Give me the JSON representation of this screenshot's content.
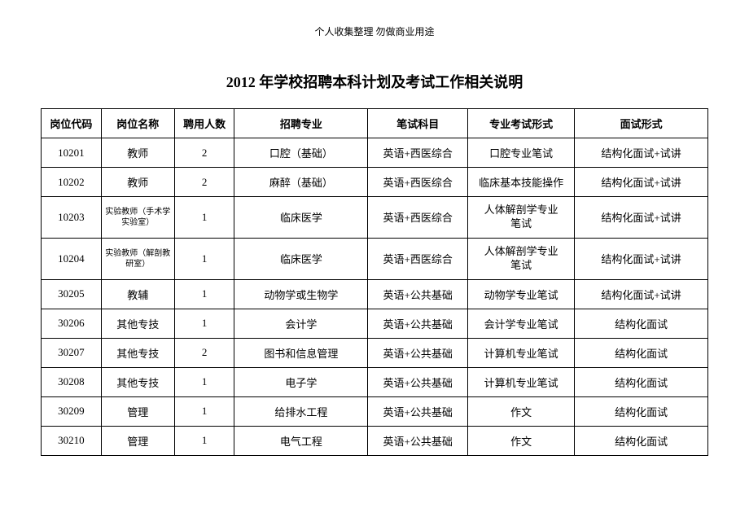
{
  "header_note": "个人收集整理  勿做商业用途",
  "title": "2012 年学校招聘本科计划及考试工作相关说明",
  "table": {
    "columns": [
      "岗位代码",
      "岗位名称",
      "聘用人数",
      "招聘专业",
      "笔试科目",
      "专业考试形式",
      "面试形式"
    ],
    "rows": [
      {
        "code": "10201",
        "name": "教师",
        "name_small": false,
        "count": "2",
        "major": "口腔（基础）",
        "written": "英语+西医综合",
        "pro": "口腔专业笔试",
        "pro_two": false,
        "interview": "结构化面试+试讲"
      },
      {
        "code": "10202",
        "name": "教师",
        "name_small": false,
        "count": "2",
        "major": "麻醉（基础）",
        "written": "英语+西医综合",
        "pro": "临床基本技能操作",
        "pro_two": false,
        "interview": "结构化面试+试讲"
      },
      {
        "code": "10203",
        "name": "实验教师（手术学实验室）",
        "name_small": true,
        "count": "1",
        "major": "临床医学",
        "written": "英语+西医综合",
        "pro": "人体解剖学专业笔试",
        "pro_two": true,
        "interview": "结构化面试+试讲"
      },
      {
        "code": "10204",
        "name": "实验教师（解剖教研室）",
        "name_small": true,
        "count": "1",
        "major": "临床医学",
        "written": "英语+西医综合",
        "pro": "人体解剖学专业笔试",
        "pro_two": true,
        "interview": "结构化面试+试讲"
      },
      {
        "code": "30205",
        "name": "教辅",
        "name_small": false,
        "count": "1",
        "major": "动物学或生物学",
        "written": "英语+公共基础",
        "pro": "动物学专业笔试",
        "pro_two": false,
        "interview": "结构化面试+试讲"
      },
      {
        "code": "30206",
        "name": "其他专技",
        "name_small": false,
        "count": "1",
        "major": "会计学",
        "written": "英语+公共基础",
        "pro": "会计学专业笔试",
        "pro_two": false,
        "interview": "结构化面试"
      },
      {
        "code": "30207",
        "name": "其他专技",
        "name_small": false,
        "count": "2",
        "major": "图书和信息管理",
        "written": "英语+公共基础",
        "pro": "计算机专业笔试",
        "pro_two": false,
        "interview": "结构化面试"
      },
      {
        "code": "30208",
        "name": "其他专技",
        "name_small": false,
        "count": "1",
        "major": "电子学",
        "written": "英语+公共基础",
        "pro": "计算机专业笔试",
        "pro_two": false,
        "interview": "结构化面试"
      },
      {
        "code": "30209",
        "name": "管理",
        "name_small": false,
        "count": "1",
        "major": "给排水工程",
        "written": "英语+公共基础",
        "pro": "作文",
        "pro_two": false,
        "interview": "结构化面试"
      },
      {
        "code": "30210",
        "name": "管理",
        "name_small": false,
        "count": "1",
        "major": "电气工程",
        "written": "英语+公共基础",
        "pro": "作文",
        "pro_two": false,
        "interview": "结构化面试"
      }
    ]
  }
}
